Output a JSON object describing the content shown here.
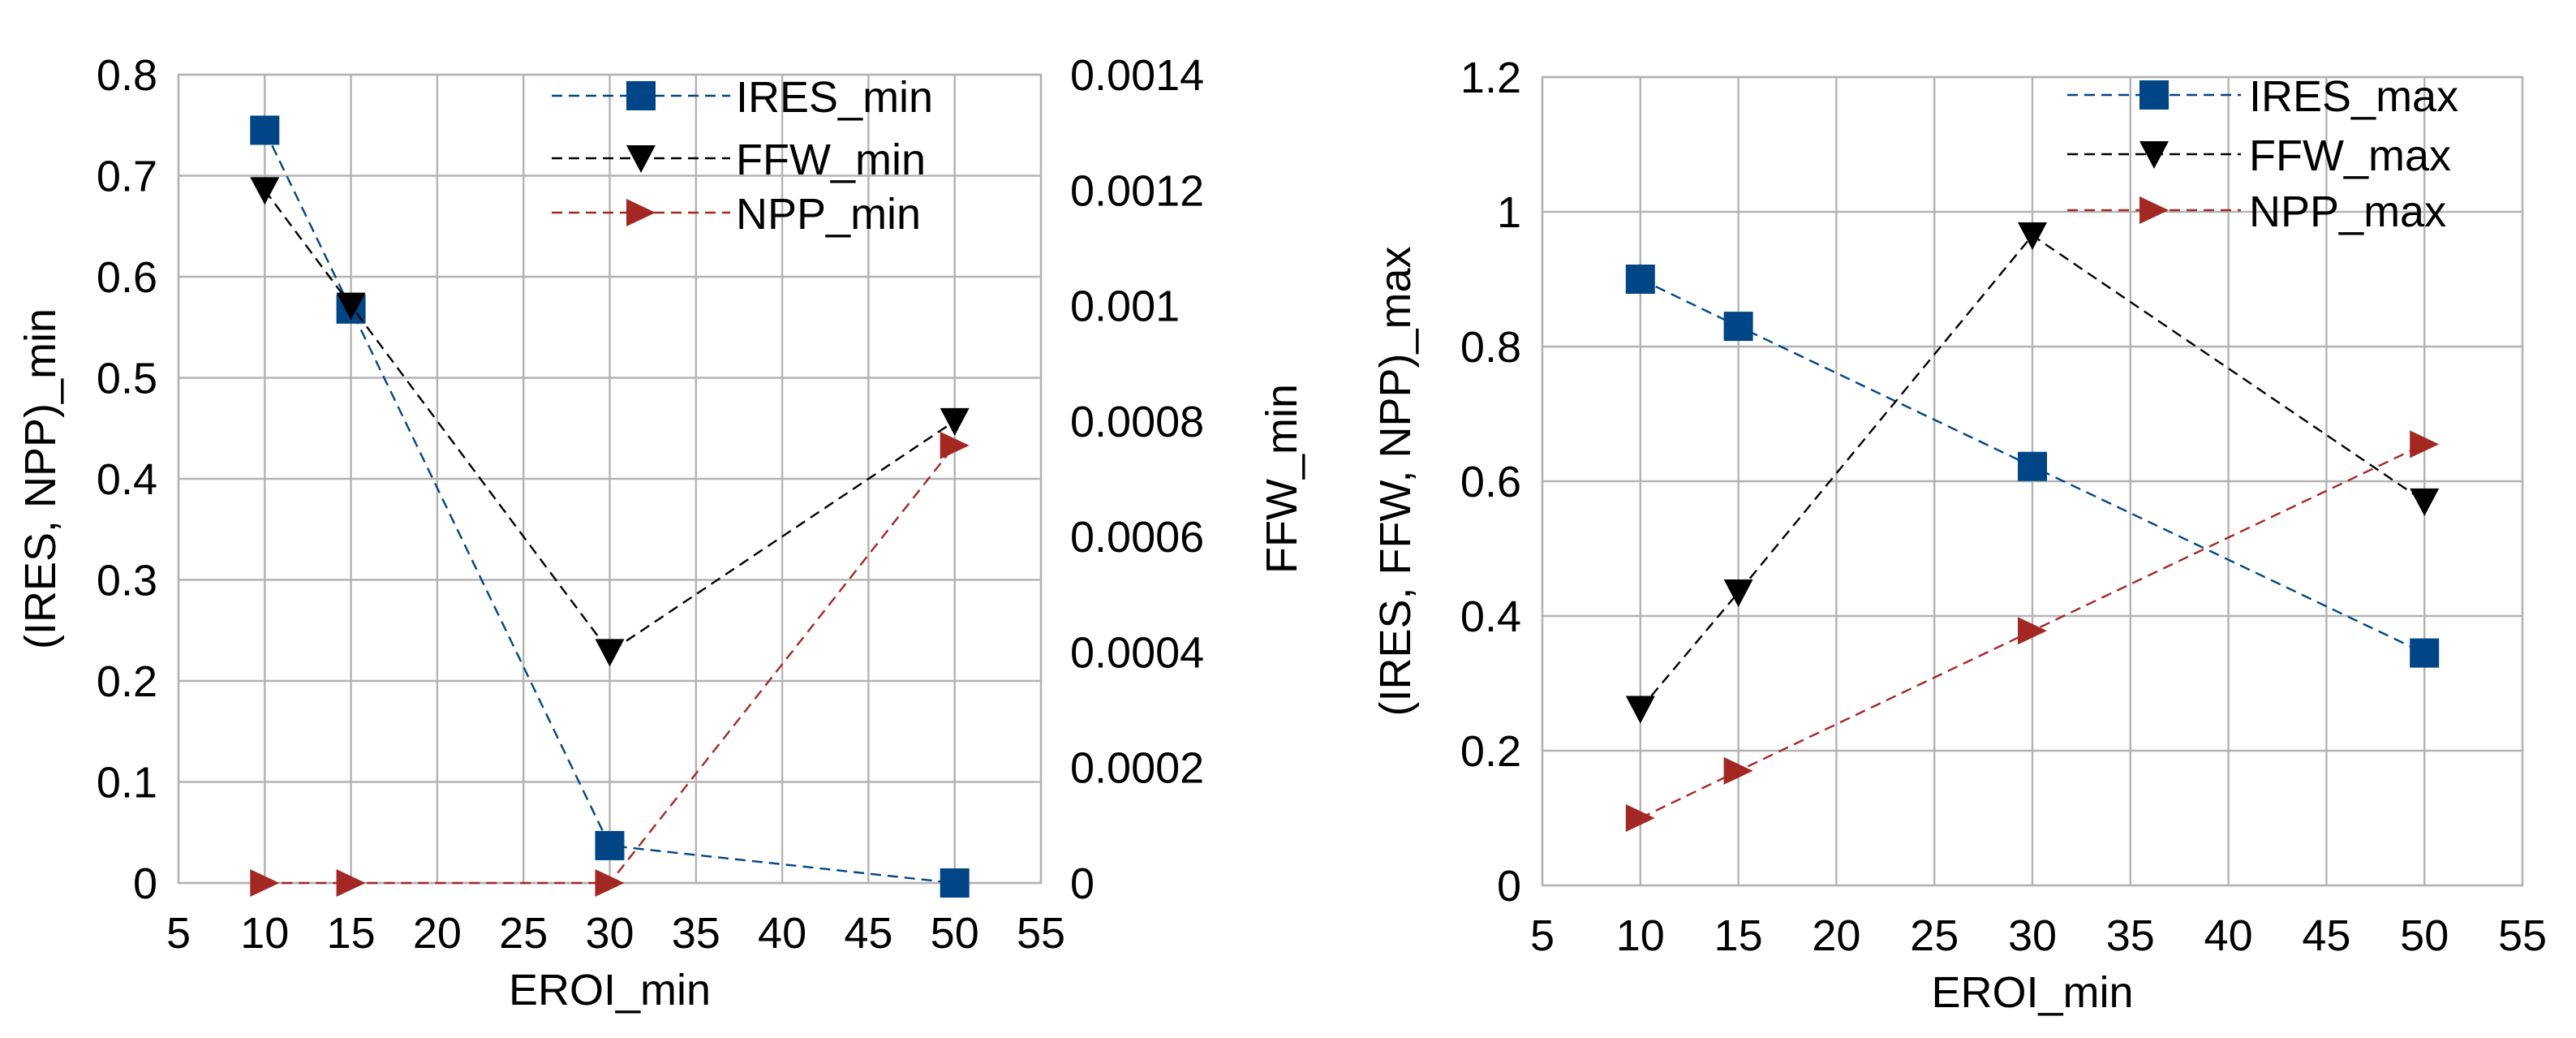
{
  "chart_data": [
    {
      "type": "line",
      "xlabel": "EROI_min",
      "ylabel": "(IRES, NPP)_min",
      "y2label": "FFW_min",
      "xlim": [
        5,
        55
      ],
      "xticks": [
        5,
        10,
        15,
        20,
        25,
        30,
        35,
        40,
        45,
        50,
        55
      ],
      "ylim": [
        0,
        0.8
      ],
      "yticks": [
        "0",
        "0.1",
        "0.2",
        "0.3",
        "0.4",
        "0.5",
        "0.6",
        "0.7",
        "0.8"
      ],
      "y2lim": [
        0,
        0.0014
      ],
      "y2ticks": [
        "0",
        "0.0002",
        "0.0004",
        "0.0006",
        "0.0008",
        "0.001",
        "0.0012",
        "0.0014"
      ],
      "grid": true,
      "legend_position": "top-right",
      "series": [
        {
          "name": "IRES_min",
          "axis": "left",
          "marker": "square",
          "color": "#004586",
          "x": [
            10,
            15,
            30,
            50
          ],
          "values": [
            0.745,
            0.568,
            0.037,
            0.0
          ]
        },
        {
          "name": "FFW_min",
          "axis": "right",
          "marker": "triangle-down",
          "color": "#000000",
          "x": [
            10,
            15,
            30,
            50
          ],
          "values": [
            0.0012,
            0.001,
            0.0004,
            0.0008
          ]
        },
        {
          "name": "NPP_min",
          "axis": "left",
          "marker": "triangle-right",
          "color": "#a32824",
          "x": [
            10,
            15,
            30,
            50
          ],
          "values": [
            0.0,
            0.0,
            0.0,
            0.433
          ]
        }
      ]
    },
    {
      "type": "line",
      "xlabel": "EROI_min",
      "ylabel": "(IRES, FFW, NPP)_max",
      "xlim": [
        5,
        55
      ],
      "xticks": [
        5,
        10,
        15,
        20,
        25,
        30,
        35,
        40,
        45,
        50,
        55
      ],
      "ylim": [
        0,
        1.2
      ],
      "yticks": [
        "0",
        "0.2",
        "0.4",
        "0.6",
        "0.8",
        "1",
        "1.2"
      ],
      "grid": true,
      "legend_position": "top-right",
      "series": [
        {
          "name": "IRES_max",
          "axis": "left",
          "marker": "square",
          "color": "#004586",
          "x": [
            10,
            15,
            30,
            50
          ],
          "values": [
            0.9,
            0.83,
            0.622,
            0.345
          ]
        },
        {
          "name": "FFW_max",
          "axis": "left",
          "marker": "triangle-down",
          "color": "#000000",
          "x": [
            10,
            15,
            30,
            50
          ],
          "values": [
            0.262,
            0.435,
            0.965,
            0.57
          ]
        },
        {
          "name": "NPP_max",
          "axis": "left",
          "marker": "triangle-right",
          "color": "#a32824",
          "x": [
            10,
            15,
            30,
            50
          ],
          "values": [
            0.1,
            0.17,
            0.378,
            0.655
          ]
        }
      ]
    }
  ]
}
